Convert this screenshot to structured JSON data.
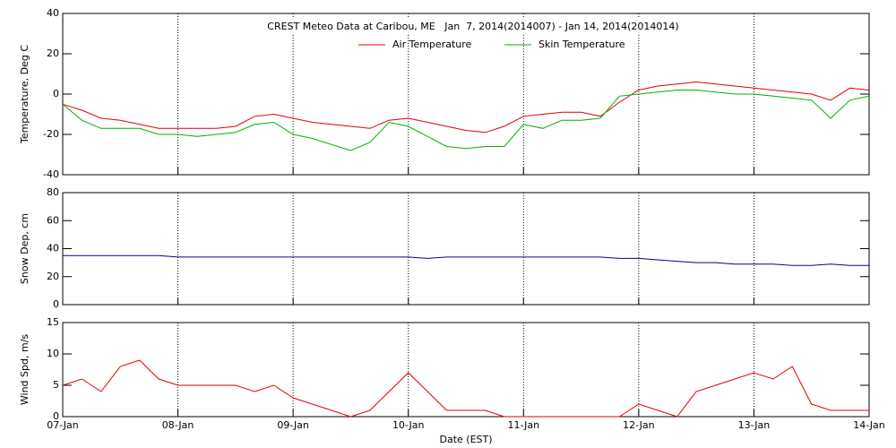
{
  "chart_data": [
    {
      "type": "line",
      "title": "CREST Meteo Data at Caribou, ME   Jan  7, 2014(2014007) - Jan 14, 2014(2014014)",
      "ylabel": "Temperature, Deg C",
      "ylim": [
        -40,
        40
      ],
      "yticks": [
        -40,
        -20,
        0,
        20,
        40
      ],
      "xlim": [
        0,
        7
      ],
      "x": [
        0,
        0.167,
        0.333,
        0.5,
        0.667,
        0.833,
        1,
        1.167,
        1.333,
        1.5,
        1.667,
        1.833,
        2,
        2.167,
        2.333,
        2.5,
        2.667,
        2.833,
        3,
        3.167,
        3.333,
        3.5,
        3.667,
        3.833,
        4,
        4.167,
        4.333,
        4.5,
        4.667,
        4.833,
        5,
        5.167,
        5.333,
        5.5,
        5.667,
        5.833,
        6,
        6.167,
        6.333,
        6.5,
        6.667,
        6.833,
        7
      ],
      "series": [
        {
          "name": "Air Temperature",
          "color": "#e00000",
          "values": [
            -5,
            -8,
            -12,
            -13,
            -15,
            -17,
            -17,
            -17,
            -17,
            -16,
            -11,
            -10,
            -12,
            -14,
            -15,
            -16,
            -17,
            -13,
            -12,
            -14,
            -16,
            -18,
            -19,
            -16,
            -11,
            -10,
            -9,
            -9,
            -11,
            -4,
            2,
            4,
            5,
            6,
            5,
            4,
            3,
            2,
            1,
            0,
            -3,
            3,
            2
          ]
        },
        {
          "name": "Skin Temperature",
          "color": "#00b000",
          "values": [
            -5,
            -13,
            -17,
            -17,
            -17,
            -20,
            -20,
            -21,
            -20,
            -19,
            -15,
            -14,
            -20,
            -22,
            -25,
            -28,
            -24,
            -14,
            -16,
            -21,
            -26,
            -27,
            -26,
            -26,
            -15,
            -17,
            -13,
            -13,
            -12,
            -1,
            0,
            1,
            2,
            2,
            1,
            0,
            0,
            -1,
            -2,
            -3,
            -12,
            -3,
            -1
          ]
        }
      ]
    },
    {
      "type": "line",
      "ylabel": "Snow Dep, cm",
      "ylim": [
        0,
        80
      ],
      "yticks": [
        0,
        20,
        40,
        60,
        80
      ],
      "xlim": [
        0,
        7
      ],
      "x": [
        0,
        0.167,
        0.333,
        0.5,
        0.667,
        0.833,
        1,
        1.167,
        1.333,
        1.5,
        1.667,
        1.833,
        2,
        2.167,
        2.333,
        2.5,
        2.667,
        2.833,
        3,
        3.167,
        3.333,
        3.5,
        3.667,
        3.833,
        4,
        4.167,
        4.333,
        4.5,
        4.667,
        4.833,
        5,
        5.167,
        5.333,
        5.5,
        5.667,
        5.833,
        6,
        6.167,
        6.333,
        6.5,
        6.667,
        6.833,
        7
      ],
      "series": [
        {
          "color": "#0000a0",
          "values": [
            35,
            35,
            35,
            35,
            35,
            35,
            34,
            34,
            34,
            34,
            34,
            34,
            34,
            34,
            34,
            34,
            34,
            34,
            34,
            33,
            34,
            34,
            34,
            34,
            34,
            34,
            34,
            34,
            34,
            33,
            33,
            32,
            31,
            30,
            30,
            29,
            29,
            29,
            28,
            28,
            29,
            28,
            28
          ]
        }
      ]
    },
    {
      "type": "line",
      "ylabel": "Wind Spd, m/s",
      "xlabel": "Date (EST)",
      "ylim": [
        0,
        15
      ],
      "yticks": [
        0,
        5,
        10,
        15
      ],
      "xlim": [
        0,
        7
      ],
      "xticks": [
        {
          "value": 0,
          "label": "07-Jan"
        },
        {
          "value": 1,
          "label": "08-Jan"
        },
        {
          "value": 2,
          "label": "09-Jan"
        },
        {
          "value": 3,
          "label": "10-Jan"
        },
        {
          "value": 4,
          "label": "11-Jan"
        },
        {
          "value": 5,
          "label": "12-Jan"
        },
        {
          "value": 6,
          "label": "13-Jan"
        },
        {
          "value": 7,
          "label": "14-Jan"
        }
      ],
      "x": [
        0,
        0.167,
        0.333,
        0.5,
        0.667,
        0.833,
        1,
        1.167,
        1.333,
        1.5,
        1.667,
        1.833,
        2,
        2.167,
        2.333,
        2.5,
        2.667,
        2.833,
        3,
        3.167,
        3.333,
        3.5,
        3.667,
        3.833,
        4,
        4.167,
        4.333,
        4.5,
        4.667,
        4.833,
        5,
        5.167,
        5.333,
        5.5,
        5.667,
        5.833,
        6,
        6.167,
        6.333,
        6.5,
        6.667,
        6.833,
        7
      ],
      "series": [
        {
          "color": "#e00000",
          "values": [
            5,
            6,
            4,
            8,
            9,
            6,
            5,
            5,
            5,
            5,
            4,
            5,
            3,
            2,
            1,
            0,
            1,
            4,
            7,
            4,
            1,
            1,
            1,
            0,
            0,
            0,
            0,
            0,
            0,
            0,
            2,
            1,
            0,
            4,
            5,
            6,
            7,
            6,
            8,
            2,
            1,
            1,
            1
          ]
        }
      ]
    }
  ]
}
